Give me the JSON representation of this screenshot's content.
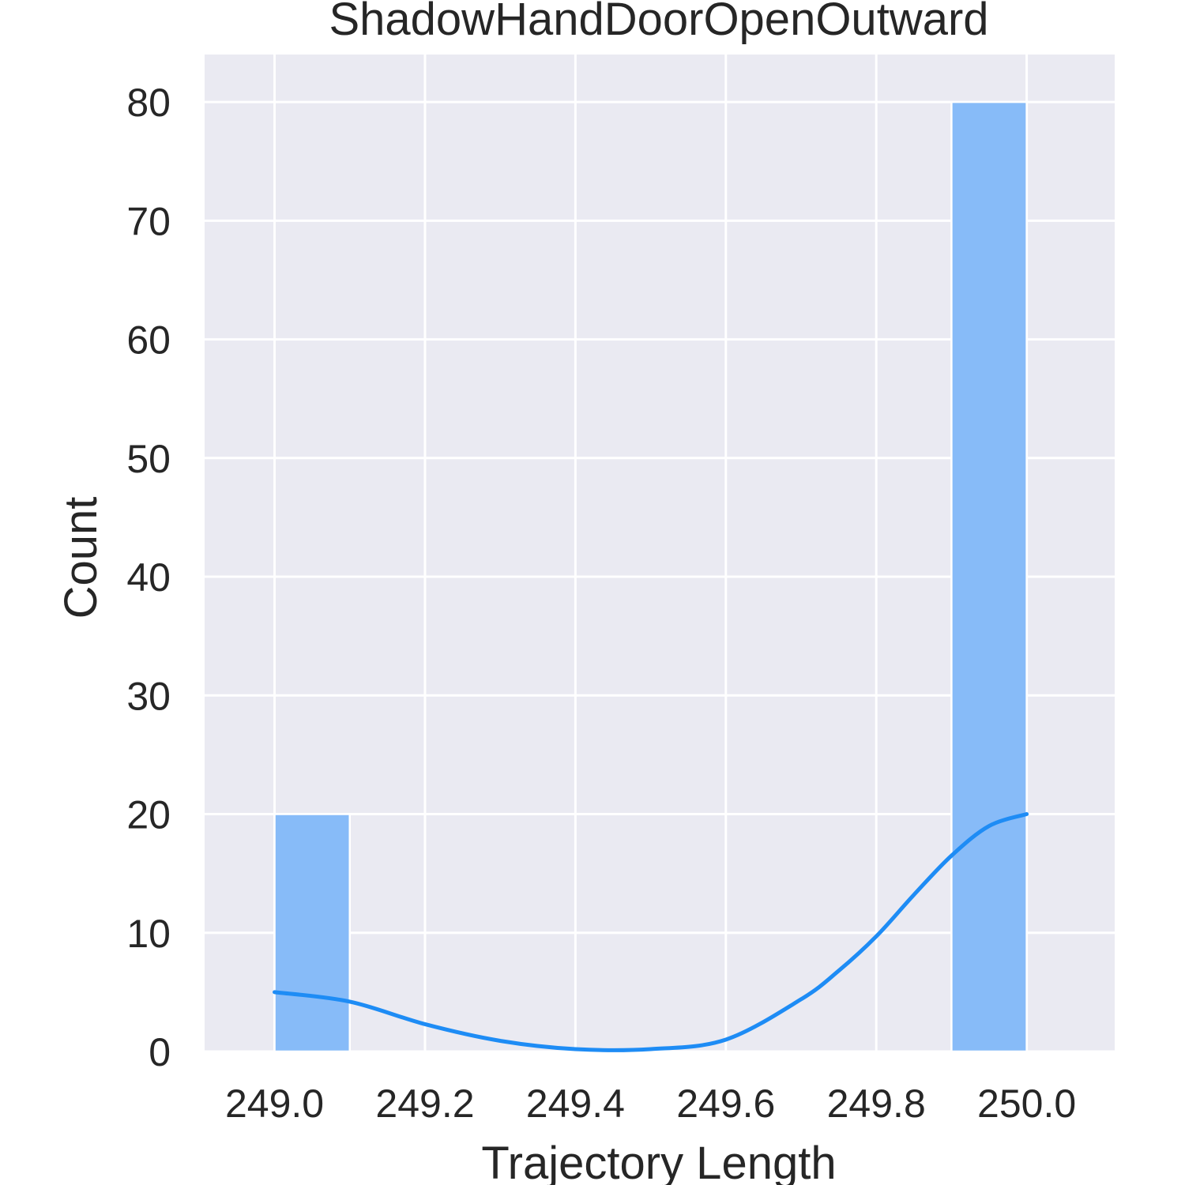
{
  "chart_data": {
    "type": "bar",
    "title": "ShadowHandDoorOpenOutward",
    "xlabel": "Trajectory Length",
    "ylabel": "Count",
    "xlim": [
      248.907,
      250.117
    ],
    "ylim": [
      0,
      84
    ],
    "xticks": [
      {
        "value": 249.0,
        "label": "249.0"
      },
      {
        "value": 249.2,
        "label": "249.2"
      },
      {
        "value": 249.4,
        "label": "249.4"
      },
      {
        "value": 249.6,
        "label": "249.6"
      },
      {
        "value": 249.8,
        "label": "249.8"
      },
      {
        "value": 250.0,
        "label": "250.0"
      }
    ],
    "yticks": [
      {
        "value": 0,
        "label": "0"
      },
      {
        "value": 10,
        "label": "10"
      },
      {
        "value": 20,
        "label": "20"
      },
      {
        "value": 30,
        "label": "30"
      },
      {
        "value": 40,
        "label": "40"
      },
      {
        "value": 50,
        "label": "50"
      },
      {
        "value": 60,
        "label": "60"
      },
      {
        "value": 70,
        "label": "70"
      },
      {
        "value": 80,
        "label": "80"
      }
    ],
    "bins": [
      {
        "start": 249.0,
        "end": 249.1,
        "count": 20
      },
      {
        "start": 249.1,
        "end": 249.2,
        "count": 0
      },
      {
        "start": 249.2,
        "end": 249.3,
        "count": 0
      },
      {
        "start": 249.3,
        "end": 249.4,
        "count": 0
      },
      {
        "start": 249.4,
        "end": 249.5,
        "count": 0
      },
      {
        "start": 249.5,
        "end": 249.6,
        "count": 0
      },
      {
        "start": 249.6,
        "end": 249.7,
        "count": 0
      },
      {
        "start": 249.7,
        "end": 249.8,
        "count": 0
      },
      {
        "start": 249.8,
        "end": 249.9,
        "count": 0
      },
      {
        "start": 249.9,
        "end": 250.0,
        "count": 80
      }
    ],
    "kde": {
      "x": [
        249.0,
        249.1,
        249.2,
        249.3,
        249.4,
        249.5,
        249.6,
        249.7,
        249.75,
        249.8,
        249.85,
        249.9,
        249.95,
        250.0
      ],
      "y": [
        5.0,
        4.2,
        2.3,
        0.9,
        0.2,
        0.2,
        1.0,
        4.4,
        6.8,
        9.7,
        13.2,
        16.5,
        19.0,
        20.0
      ]
    },
    "grid": true,
    "colors": {
      "bar": "#87bbf8",
      "kde": "#1e8cf5",
      "plot_background": "#eaeaf2",
      "grid": "#ffffff",
      "text": "#262626"
    }
  }
}
